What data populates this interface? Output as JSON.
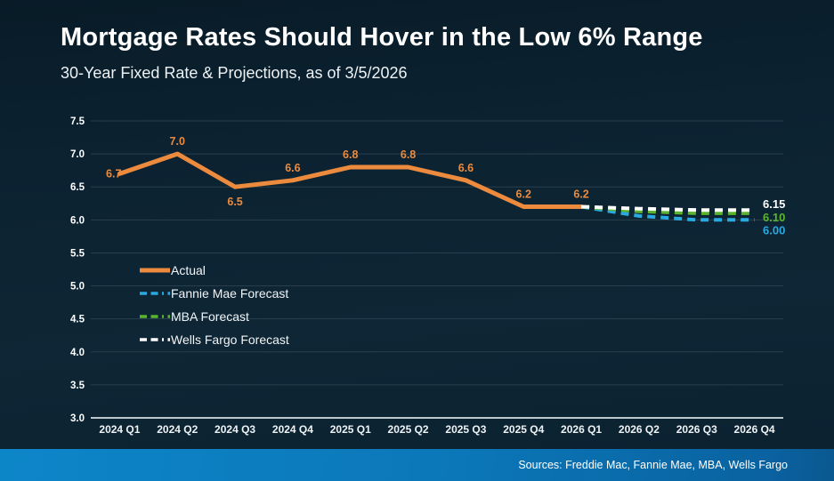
{
  "header": {
    "title": "Mortgage Rates Should Hover in the Low 6% Range",
    "subtitle": "30-Year Fixed Rate & Projections, as of 3/5/2026"
  },
  "footer": {
    "sources": "Sources: Freddie Mac, Fannie Mae, MBA, Wells Fargo"
  },
  "colors": {
    "background_top": "#081B27",
    "background_mid": "#0E2635",
    "gridline": "#2A3F4D",
    "axis": "#BDC7CD",
    "actual": "#EC8B3D",
    "fannie": "#2AA9E0",
    "mba": "#5BB42F",
    "wells": "#FFFFFF",
    "footer_bar_left": "#0D86C9",
    "footer_bar_right": "#0A5890"
  },
  "legend": {
    "items": [
      {
        "id": "actual",
        "label": "Actual"
      },
      {
        "id": "fannie",
        "label": "Fannie Mae Forecast"
      },
      {
        "id": "mba",
        "label": "MBA Forecast"
      },
      {
        "id": "wells",
        "label": "Wells Fargo Forecast"
      }
    ]
  },
  "chart_data": {
    "type": "line",
    "title": "Mortgage Rates Should Hover in the Low 6% Range",
    "subtitle": "30-Year Fixed Rate & Projections, as of 3/5/2026",
    "categories": [
      "2024 Q1",
      "2024 Q2",
      "2024 Q3",
      "2024 Q4",
      "2025 Q1",
      "2025 Q2",
      "2025 Q3",
      "2025 Q4",
      "2026 Q1",
      "2026 Q2",
      "2026 Q3",
      "2026 Q4"
    ],
    "ylim": [
      3.0,
      7.5
    ],
    "ytick_step": 0.5,
    "grid": true,
    "legend_position": "middle-left",
    "series": [
      {
        "id": "actual",
        "name": "Actual",
        "style": "solid",
        "color": "#EC8B3D",
        "start_index": 0,
        "values": [
          6.7,
          7.0,
          6.5,
          6.6,
          6.8,
          6.8,
          6.6,
          6.2,
          6.2
        ],
        "point_labels": [
          "6.7",
          "7.0",
          "6.5",
          "6.6",
          "6.8",
          "6.8",
          "6.6",
          "6.2",
          "6.2"
        ],
        "label_positions": [
          "left",
          "above",
          "below",
          "above",
          "above",
          "above",
          "above",
          "above",
          "above"
        ]
      },
      {
        "id": "fannie",
        "name": "Fannie Mae Forecast",
        "style": "dashed",
        "color": "#2AA9E0",
        "start_index": 8,
        "values": [
          6.2,
          6.06,
          6.0,
          6.0
        ],
        "end_label": "6.00",
        "end_label_offset": 16
      },
      {
        "id": "mba",
        "name": "MBA Forecast",
        "style": "dashed",
        "color": "#5BB42F",
        "start_index": 8,
        "values": [
          6.2,
          6.13,
          6.1,
          6.1
        ],
        "end_label": "6.10",
        "end_label_offset": 9
      },
      {
        "id": "wells",
        "name": "Wells Fargo Forecast",
        "style": "dashed",
        "color": "#FFFFFF",
        "start_index": 8,
        "values": [
          6.2,
          6.17,
          6.15,
          6.15
        ],
        "end_label": "6.15",
        "end_label_offset": -2
      }
    ]
  }
}
